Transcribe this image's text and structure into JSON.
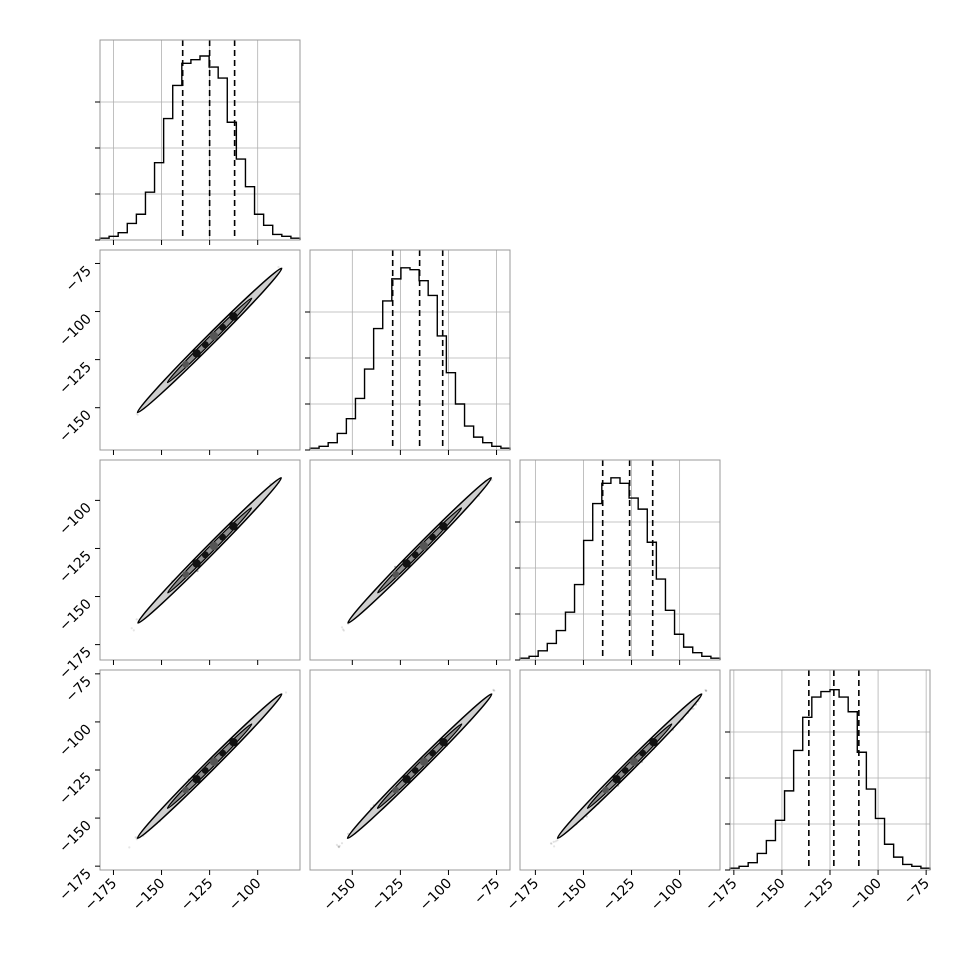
{
  "chart_data": {
    "type": "corner",
    "grid": true,
    "legend": "none",
    "colors": {
      "line": "#000000",
      "grid": "#b0b0b0",
      "frame": "#999999"
    },
    "dims": [
      {
        "range": [
          -182,
          -78
        ],
        "ticks": [
          -175,
          -150,
          -125,
          -100
        ],
        "quantiles": [
          -139,
          -125,
          -112
        ],
        "mean": -125,
        "sigma": 10,
        "hist": [
          0.01,
          0.02,
          0.04,
          0.09,
          0.14,
          0.26,
          0.42,
          0.66,
          0.84,
          0.96,
          0.98,
          1.0,
          0.94,
          0.88,
          0.64,
          0.44,
          0.29,
          0.14,
          0.08,
          0.03,
          0.02,
          0.01
        ]
      },
      {
        "range": [
          -172,
          -68
        ],
        "ticks": [
          -150,
          -125,
          -100,
          -75
        ],
        "quantiles": [
          -129,
          -115,
          -103
        ],
        "mean": -115,
        "sigma": 10,
        "hist": [
          0.01,
          0.02,
          0.04,
          0.09,
          0.17,
          0.28,
          0.44,
          0.66,
          0.81,
          0.93,
          0.99,
          0.98,
          0.92,
          0.84,
          0.62,
          0.42,
          0.25,
          0.13,
          0.07,
          0.04,
          0.02,
          0.01
        ]
      },
      {
        "range": [
          -183,
          -79
        ],
        "ticks": [
          -175,
          -150,
          -125,
          -100
        ],
        "quantiles": [
          -140,
          -126,
          -114
        ],
        "mean": -126,
        "sigma": 10,
        "hist": [
          0.01,
          0.02,
          0.05,
          0.09,
          0.16,
          0.26,
          0.41,
          0.65,
          0.85,
          0.96,
          0.99,
          0.96,
          0.88,
          0.82,
          0.64,
          0.44,
          0.27,
          0.14,
          0.07,
          0.04,
          0.02,
          0.01
        ]
      },
      {
        "range": [
          -177,
          -73
        ],
        "ticks": [
          -175,
          -150,
          -125,
          -100,
          -75
        ],
        "quantiles": [
          -136,
          -123,
          -110
        ],
        "mean": -123,
        "sigma": 10,
        "hist": [
          0.01,
          0.02,
          0.04,
          0.09,
          0.16,
          0.27,
          0.43,
          0.65,
          0.83,
          0.94,
          0.97,
          0.98,
          0.94,
          0.86,
          0.64,
          0.44,
          0.28,
          0.14,
          0.07,
          0.03,
          0.02,
          0.01
        ]
      }
    ],
    "pairs": [
      {
        "row": 1,
        "col": 0,
        "xtail": [
          -163,
          -88
        ],
        "ytail": [
          -153,
          -78
        ]
      },
      {
        "row": 2,
        "col": 0,
        "xtail": [
          -165,
          -88
        ],
        "ytail": [
          -167,
          -89
        ]
      },
      {
        "row": 2,
        "col": 1,
        "xtail": [
          -155,
          -78
        ],
        "ytail": [
          -167,
          -89
        ]
      },
      {
        "row": 3,
        "col": 0,
        "xtail": [
          -167,
          -86
        ],
        "ytail": [
          -165,
          -84
        ]
      },
      {
        "row": 3,
        "col": 1,
        "xtail": [
          -157,
          -76
        ],
        "ytail": [
          -165,
          -84
        ]
      },
      {
        "row": 3,
        "col": 2,
        "xtail": [
          -166,
          -86
        ],
        "ytail": [
          -164,
          -84
        ]
      }
    ]
  }
}
